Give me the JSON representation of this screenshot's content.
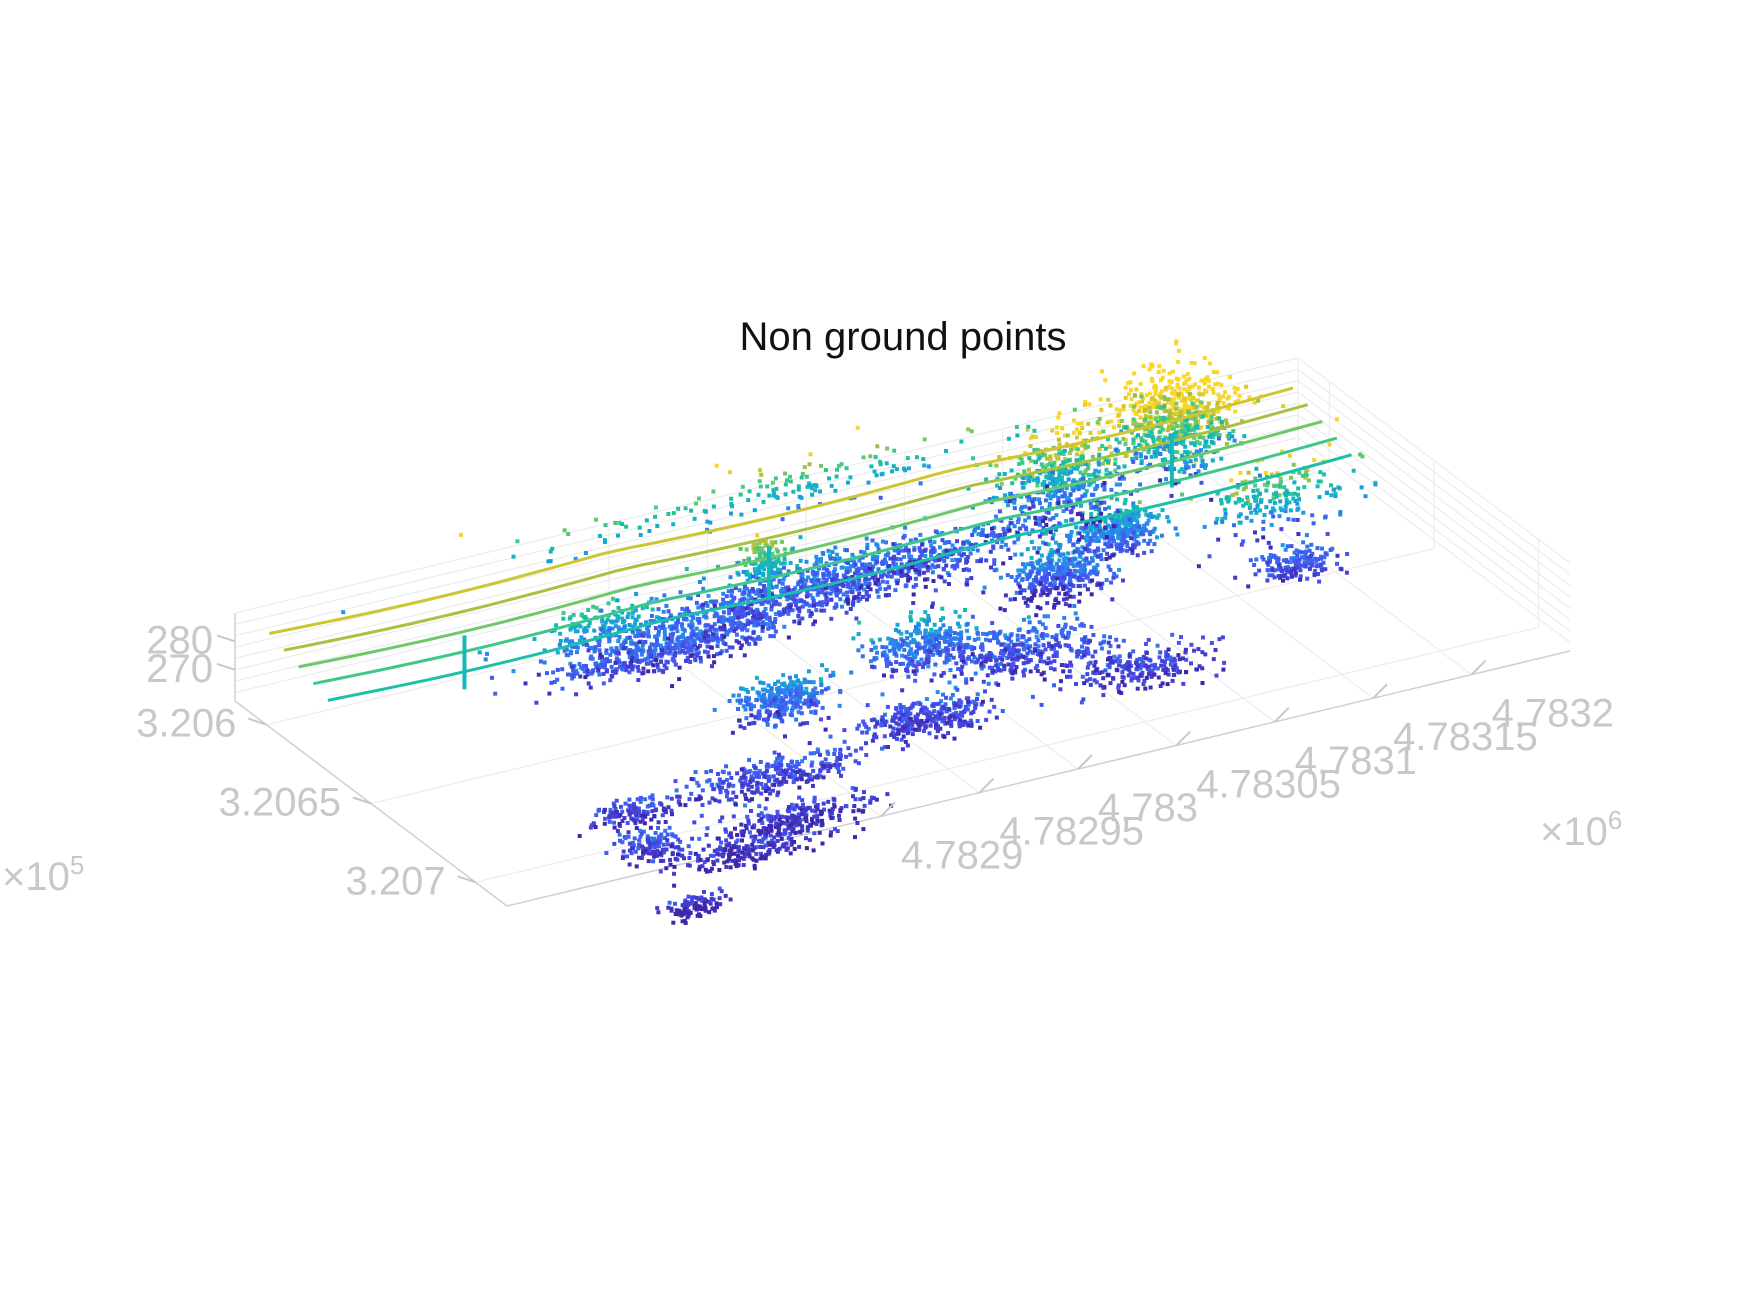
{
  "chart_data": {
    "type": "scatter",
    "subtype": "3d-point-cloud",
    "title": "Non ground points",
    "colormap": "parula",
    "colors": {
      "axis": "#c8c8c8",
      "grid": "#ececec",
      "title": "#111111",
      "low": "#3e26a8",
      "high": "#f9d72a"
    },
    "x_axis": {
      "label": "",
      "ticks": [
        4.7829,
        4.78295,
        4.783,
        4.78305,
        4.7831,
        4.78315,
        4.7832
      ],
      "tick_labels": [
        "4.7829",
        "4.78295",
        "4.783",
        "4.78305",
        "4.7831",
        "4.78315",
        "4.7832"
      ],
      "exponent_prefix": "×10",
      "exponent": "6"
    },
    "y_axis": {
      "label": "",
      "ticks": [
        3.206,
        3.2065,
        3.207
      ],
      "tick_labels": [
        "3.206",
        "3.2065",
        "3.207"
      ],
      "exponent_prefix": "×10",
      "exponent": "5"
    },
    "z_axis": {
      "label": "",
      "ticks": [
        270,
        280
      ],
      "tick_labels": [
        "270",
        "280"
      ]
    },
    "grid": true,
    "legend": "none",
    "clusters": [
      {
        "x": 4.78318,
        "y": 3.20592,
        "z": 283,
        "sx": 1.5e-05,
        "sy": 7e-05,
        "sz": 8,
        "n": 700
      },
      {
        "x": 4.78312,
        "y": 3.20595,
        "z": 275,
        "sx": 1.5e-05,
        "sy": 6e-05,
        "sz": 8,
        "n": 450
      },
      {
        "x": 4.78302,
        "y": 3.20605,
        "z": 266,
        "sx": 5e-05,
        "sy": 6e-05,
        "sz": 3,
        "n": 700
      },
      {
        "x": 4.78295,
        "y": 3.2061,
        "z": 266,
        "sx": 4e-05,
        "sy": 5e-05,
        "sz": 2.5,
        "n": 500
      },
      {
        "x": 4.78296,
        "y": 3.20604,
        "z": 276,
        "sx": 6e-06,
        "sy": 2e-05,
        "sz": 4,
        "n": 120
      },
      {
        "x": 4.78289,
        "y": 3.2062,
        "z": 266,
        "sx": 2.8e-05,
        "sy": 4e-05,
        "sz": 2.5,
        "n": 450
      },
      {
        "x": 4.78287,
        "y": 3.2061,
        "z": 272,
        "sx": 1.2e-05,
        "sy": 2e-05,
        "sz": 4,
        "n": 150
      },
      {
        "x": 4.78308,
        "y": 3.2063,
        "z": 267,
        "sx": 1.2e-05,
        "sy": 4e-05,
        "sz": 4,
        "n": 350
      },
      {
        "x": 4.78312,
        "y": 3.2062,
        "z": 270,
        "sx": 1e-05,
        "sy": 3e-05,
        "sz": 4,
        "n": 350
      },
      {
        "x": 4.78303,
        "y": 3.2066,
        "z": 265,
        "sx": 2e-05,
        "sy": 6e-05,
        "sz": 2.5,
        "n": 350
      },
      {
        "x": 4.78299,
        "y": 3.2065,
        "z": 268,
        "sx": 1.4e-05,
        "sy": 4e-05,
        "sz": 3,
        "n": 300
      },
      {
        "x": 4.78296,
        "y": 3.2068,
        "z": 264,
        "sx": 1.6e-05,
        "sy": 4e-05,
        "sz": 2,
        "n": 300
      },
      {
        "x": 4.78291,
        "y": 3.2066,
        "z": 268,
        "sx": 1.2e-05,
        "sy": 4e-05,
        "sz": 3,
        "n": 300
      },
      {
        "x": 4.78287,
        "y": 3.2069,
        "z": 264,
        "sx": 2.2e-05,
        "sy": 4e-05,
        "sz": 2,
        "n": 300
      },
      {
        "x": 4.78286,
        "y": 3.2071,
        "z": 262,
        "sx": 2e-05,
        "sy": 3e-05,
        "sz": 2,
        "n": 220
      },
      {
        "x": 4.78283,
        "y": 3.2072,
        "z": 262,
        "sx": 2e-05,
        "sy": 3e-05,
        "sz": 2,
        "n": 200
      },
      {
        "x": 4.78279,
        "y": 3.2071,
        "z": 264,
        "sx": 8e-06,
        "sy": 3e-05,
        "sz": 2,
        "n": 120
      },
      {
        "x": 4.78278,
        "y": 3.2074,
        "z": 261,
        "sx": 8e-06,
        "sy": 2e-05,
        "sz": 1.5,
        "n": 90
      },
      {
        "x": 4.7828,
        "y": 3.2069,
        "z": 263,
        "sx": 1e-05,
        "sy": 3e-05,
        "sz": 2,
        "n": 120
      },
      {
        "x": 4.78307,
        "y": 3.2068,
        "z": 263,
        "sx": 1.8e-05,
        "sy": 5e-05,
        "sz": 2,
        "n": 220
      },
      {
        "x": 4.78318,
        "y": 3.2065,
        "z": 265,
        "sx": 1e-05,
        "sy": 3e-05,
        "sz": 2,
        "n": 160
      },
      {
        "x": 4.78319,
        "y": 3.2063,
        "z": 276,
        "sx": 2e-05,
        "sy": 4e-05,
        "sz": 6,
        "n": 200
      },
      {
        "x": 4.783,
        "y": 3.2057,
        "z": 276,
        "sx": 6e-05,
        "sy": 1e-05,
        "sz": 5,
        "n": 160
      }
    ],
    "power_lines": [
      {
        "y": 3.20592,
        "z": 285,
        "sag": 1.5
      },
      {
        "y": 3.20599,
        "z": 283,
        "sag": 1.5
      },
      {
        "y": 3.20606,
        "z": 281,
        "sag": 1.5
      },
      {
        "y": 3.20613,
        "z": 279,
        "sag": 1.5
      },
      {
        "y": 3.2062,
        "z": 277,
        "sag": 1.5
      }
    ],
    "power_line_x_range": [
      4.78272,
      4.78324
    ],
    "poles": [
      {
        "x": 4.7828,
        "y": 3.2061,
        "z_bottom": 262,
        "z_top": 281
      },
      {
        "x": 4.78296,
        "y": 3.20605,
        "z_bottom": 264,
        "z_top": 283
      },
      {
        "x": 4.78317,
        "y": 3.206,
        "z_bottom": 266,
        "z_top": 285
      }
    ]
  }
}
